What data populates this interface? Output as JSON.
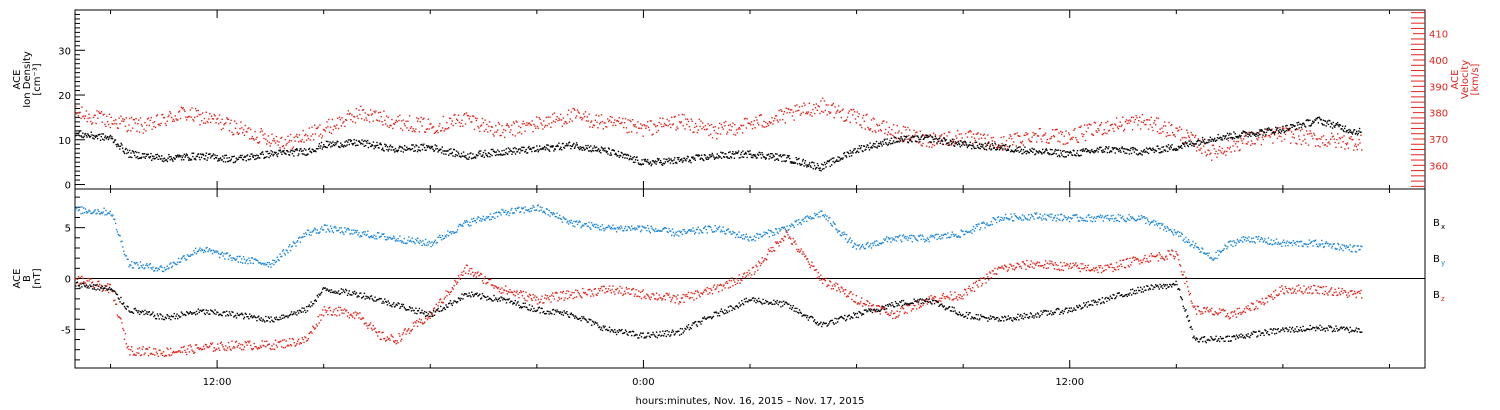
{
  "chart_data": [
    {
      "type": "scatter",
      "panel": "plasma",
      "xlabel": "hours:minutes, Nov. 16, 2015 – Nov. 17, 2015",
      "x_ticks": [
        "12:00",
        "0:00",
        "12:00"
      ],
      "x_range_hours_from_nov16_0000": [
        8.0,
        46.0
      ],
      "left_axis": {
        "label_lines": [
          "ACE",
          "Ion Density",
          "[cm⁻³]"
        ],
        "range": [
          -1,
          39
        ],
        "ticks": [
          0,
          10,
          20,
          30
        ]
      },
      "right_axis": {
        "label_lines": [
          "ACE",
          "Velocity",
          "[km/s]"
        ],
        "range": [
          351,
          419
        ],
        "ticks": [
          360,
          370,
          380,
          390,
          400,
          410
        ]
      },
      "series": [
        {
          "name": "Ion Density",
          "axis": "left",
          "color": "#000000",
          "knots": [
            [
              8.0,
              11.5
            ],
            [
              9.0,
              10.5
            ],
            [
              9.5,
              7.0
            ],
            [
              10.5,
              6.0
            ],
            [
              11.5,
              6.5
            ],
            [
              12.5,
              5.8
            ],
            [
              13.5,
              7.0
            ],
            [
              14.5,
              7.5
            ],
            [
              15.0,
              9.0
            ],
            [
              16.0,
              9.5
            ],
            [
              17.0,
              8.0
            ],
            [
              18.0,
              8.5
            ],
            [
              19.0,
              6.5
            ],
            [
              20.0,
              7.5
            ],
            [
              21.0,
              8.0
            ],
            [
              22.0,
              9.0
            ],
            [
              23.0,
              7.5
            ],
            [
              24.0,
              5.0
            ],
            [
              25.0,
              5.5
            ],
            [
              26.0,
              6.5
            ],
            [
              27.0,
              7.0
            ],
            [
              28.0,
              6.0
            ],
            [
              29.0,
              4.0
            ],
            [
              30.0,
              8.0
            ],
            [
              31.0,
              10.0
            ],
            [
              32.0,
              10.5
            ],
            [
              33.0,
              9.0
            ],
            [
              34.0,
              8.5
            ],
            [
              35.0,
              7.5
            ],
            [
              36.0,
              7.0
            ],
            [
              37.0,
              8.0
            ],
            [
              38.0,
              7.5
            ],
            [
              39.0,
              8.5
            ],
            [
              40.0,
              10.5
            ],
            [
              41.0,
              11.5
            ],
            [
              42.0,
              12.5
            ],
            [
              43.0,
              14.5
            ],
            [
              44.0,
              12.0
            ]
          ],
          "data_end_hour": 44.2
        },
        {
          "name": "Velocity",
          "axis": "right",
          "color": "#e2231a",
          "knots": [
            [
              8.0,
              380
            ],
            [
              9.0,
              377
            ],
            [
              10.0,
              375
            ],
            [
              11.0,
              380
            ],
            [
              12.0,
              377
            ],
            [
              13.0,
              372
            ],
            [
              14.0,
              369
            ],
            [
              15.0,
              374
            ],
            [
              16.0,
              380
            ],
            [
              17.0,
              377
            ],
            [
              18.0,
              375
            ],
            [
              19.0,
              378
            ],
            [
              20.0,
              373
            ],
            [
              21.0,
              376
            ],
            [
              22.0,
              379
            ],
            [
              23.0,
              376
            ],
            [
              24.0,
              374
            ],
            [
              25.0,
              377
            ],
            [
              26.0,
              373
            ],
            [
              27.0,
              376
            ],
            [
              28.0,
              379
            ],
            [
              29.0,
              383
            ],
            [
              30.0,
              378
            ],
            [
              31.0,
              373
            ],
            [
              32.0,
              370
            ],
            [
              33.0,
              371
            ],
            [
              34.0,
              368
            ],
            [
              35.0,
              372
            ],
            [
              36.0,
              371
            ],
            [
              37.0,
              375
            ],
            [
              38.0,
              377
            ],
            [
              39.0,
              373
            ],
            [
              40.0,
              365
            ],
            [
              41.0,
              370
            ],
            [
              42.0,
              372
            ],
            [
              43.0,
              370
            ],
            [
              44.0,
              369
            ]
          ],
          "data_end_hour": 44.2
        }
      ]
    },
    {
      "type": "scatter",
      "panel": "magnetic-field",
      "y_axis": {
        "label_lines": [
          "ACE",
          "B",
          "[nT]"
        ],
        "range": [
          -8.8,
          8.8
        ],
        "ticks": [
          -5,
          0,
          5
        ]
      },
      "zero_line": true,
      "series": [
        {
          "name": "Bx",
          "label_text": "B",
          "subscript": "x",
          "color": "#000000",
          "knots": [
            [
              8.0,
              -0.5
            ],
            [
              9.0,
              -1.0
            ],
            [
              9.5,
              -3.0
            ],
            [
              10.5,
              -3.8
            ],
            [
              11.5,
              -3.2
            ],
            [
              12.5,
              -3.5
            ],
            [
              13.5,
              -4.0
            ],
            [
              14.5,
              -3.0
            ],
            [
              15.0,
              -1.0
            ],
            [
              16.0,
              -1.5
            ],
            [
              17.0,
              -2.5
            ],
            [
              18.0,
              -3.5
            ],
            [
              19.0,
              -1.5
            ],
            [
              20.0,
              -2.0
            ],
            [
              21.0,
              -3.0
            ],
            [
              22.0,
              -3.5
            ],
            [
              23.0,
              -5.0
            ],
            [
              24.0,
              -5.6
            ],
            [
              25.0,
              -5.2
            ],
            [
              26.0,
              -3.5
            ],
            [
              27.0,
              -2.0
            ],
            [
              28.0,
              -2.5
            ],
            [
              29.0,
              -4.5
            ],
            [
              30.0,
              -3.5
            ],
            [
              31.0,
              -2.5
            ],
            [
              32.0,
              -2.0
            ],
            [
              33.0,
              -3.5
            ],
            [
              34.0,
              -4.0
            ],
            [
              35.0,
              -3.5
            ],
            [
              36.0,
              -3.0
            ],
            [
              37.0,
              -2.0
            ],
            [
              38.0,
              -1.0
            ],
            [
              39.0,
              -0.5
            ],
            [
              39.5,
              -6.0
            ],
            [
              40.5,
              -5.8
            ],
            [
              41.0,
              -5.5
            ],
            [
              42.0,
              -5.0
            ],
            [
              43.0,
              -4.8
            ],
            [
              44.0,
              -5.0
            ]
          ],
          "data_end_hour": 44.2
        },
        {
          "name": "By",
          "label_text": "B",
          "subscript": "y",
          "color": "#1a86d8",
          "knots": [
            [
              8.0,
              6.8
            ],
            [
              9.0,
              6.6
            ],
            [
              9.5,
              1.5
            ],
            [
              10.5,
              1.0
            ],
            [
              11.5,
              3.0
            ],
            [
              12.5,
              2.0
            ],
            [
              13.5,
              1.5
            ],
            [
              14.5,
              4.5
            ],
            [
              15.0,
              5.0
            ],
            [
              16.0,
              4.5
            ],
            [
              17.0,
              4.0
            ],
            [
              18.0,
              3.5
            ],
            [
              19.0,
              5.5
            ],
            [
              20.0,
              6.5
            ],
            [
              21.0,
              7.0
            ],
            [
              22.0,
              5.5
            ],
            [
              23.0,
              5.0
            ],
            [
              24.0,
              5.0
            ],
            [
              25.0,
              4.5
            ],
            [
              26.0,
              5.0
            ],
            [
              27.0,
              4.0
            ],
            [
              28.0,
              5.0
            ],
            [
              29.0,
              6.5
            ],
            [
              30.0,
              3.0
            ],
            [
              31.0,
              4.0
            ],
            [
              32.0,
              4.0
            ],
            [
              33.0,
              4.5
            ],
            [
              34.0,
              6.0
            ],
            [
              35.0,
              6.2
            ],
            [
              36.0,
              6.0
            ],
            [
              37.0,
              6.0
            ],
            [
              38.0,
              6.0
            ],
            [
              39.0,
              4.5
            ],
            [
              40.0,
              2.0
            ],
            [
              40.5,
              3.5
            ],
            [
              41.0,
              4.0
            ],
            [
              42.0,
              3.5
            ],
            [
              43.0,
              3.5
            ],
            [
              44.0,
              3.0
            ]
          ],
          "data_end_hour": 44.2
        },
        {
          "name": "Bz",
          "label_text": "B",
          "subscript": "z",
          "color": "#e2231a",
          "knots": [
            [
              8.0,
              0.0
            ],
            [
              9.0,
              -1.0
            ],
            [
              9.5,
              -7.0
            ],
            [
              10.5,
              -7.2
            ],
            [
              11.5,
              -6.8
            ],
            [
              12.5,
              -6.5
            ],
            [
              13.5,
              -6.5
            ],
            [
              14.5,
              -6.0
            ],
            [
              15.0,
              -3.0
            ],
            [
              16.0,
              -3.5
            ],
            [
              16.5,
              -5.5
            ],
            [
              17.0,
              -6.0
            ],
            [
              18.0,
              -3.5
            ],
            [
              19.0,
              1.0
            ],
            [
              20.0,
              -1.0
            ],
            [
              21.0,
              -2.0
            ],
            [
              22.0,
              -1.5
            ],
            [
              23.0,
              -1.0
            ],
            [
              24.0,
              -1.5
            ],
            [
              25.0,
              -2.0
            ],
            [
              26.0,
              -1.0
            ],
            [
              27.0,
              0.5
            ],
            [
              28.0,
              4.5
            ],
            [
              29.0,
              0.0
            ],
            [
              30.0,
              -2.0
            ],
            [
              31.0,
              -3.5
            ],
            [
              32.0,
              -2.0
            ],
            [
              33.0,
              -1.5
            ],
            [
              34.0,
              1.0
            ],
            [
              35.0,
              1.5
            ],
            [
              36.0,
              1.2
            ],
            [
              37.0,
              1.0
            ],
            [
              38.0,
              2.0
            ],
            [
              39.0,
              2.5
            ],
            [
              39.5,
              -3.0
            ],
            [
              40.5,
              -3.5
            ],
            [
              41.0,
              -3.0
            ],
            [
              42.0,
              -1.0
            ],
            [
              43.0,
              -1.0
            ],
            [
              44.0,
              -1.5
            ]
          ],
          "data_end_hour": 44.2
        }
      ]
    }
  ]
}
